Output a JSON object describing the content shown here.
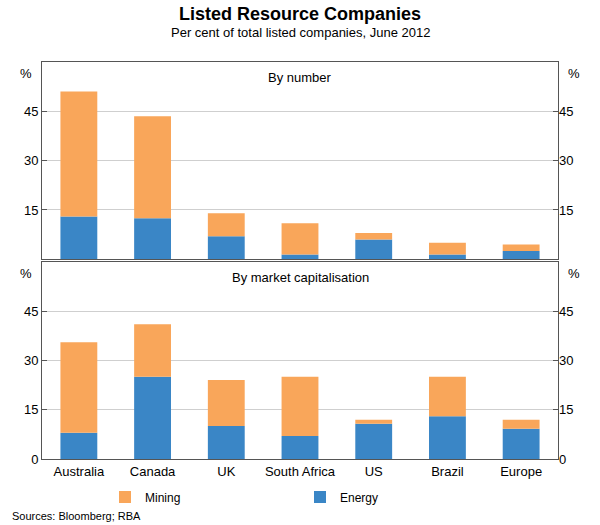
{
  "title": "Listed Resource Companies",
  "subtitle": "Per cent of total listed companies, June 2012",
  "source": "Sources: Bloomberg; RBA",
  "chart_data": [
    {
      "type": "bar",
      "title": "By number",
      "y_label": "%",
      "categories": [
        "Australia",
        "Canada",
        "UK",
        "South Africa",
        "US",
        "Brazil",
        "Europe"
      ],
      "series": [
        {
          "name": "Mining",
          "color": "#f9a65a",
          "values": [
            38,
            31,
            7,
            9.5,
            2,
            3.5,
            2
          ]
        },
        {
          "name": "Energy",
          "color": "#3a86c6",
          "values": [
            13,
            12.5,
            7,
            1.5,
            6,
            1.5,
            2.5
          ]
        }
      ],
      "stacked": true,
      "ylim": [
        0,
        60
      ],
      "yticks": [
        15,
        30,
        45
      ],
      "grid": true,
      "tick_labels": "y"
    },
    {
      "type": "bar",
      "title": "By market capitalisation",
      "y_label": "%",
      "categories": [
        "Australia",
        "Canada",
        "UK",
        "South Africa",
        "US",
        "Brazil",
        "Europe"
      ],
      "series": [
        {
          "name": "Mining",
          "color": "#f9a65a",
          "values": [
            27.5,
            16,
            14,
            18,
            1.2,
            12,
            2.7
          ]
        },
        {
          "name": "Energy",
          "color": "#3a86c6",
          "values": [
            8,
            25,
            10,
            7,
            10.7,
            13,
            9.2
          ]
        }
      ],
      "stacked": true,
      "ylim": [
        0,
        60
      ],
      "yticks": [
        0,
        15,
        30,
        45
      ],
      "grid": true,
      "legend": "bottom"
    }
  ]
}
